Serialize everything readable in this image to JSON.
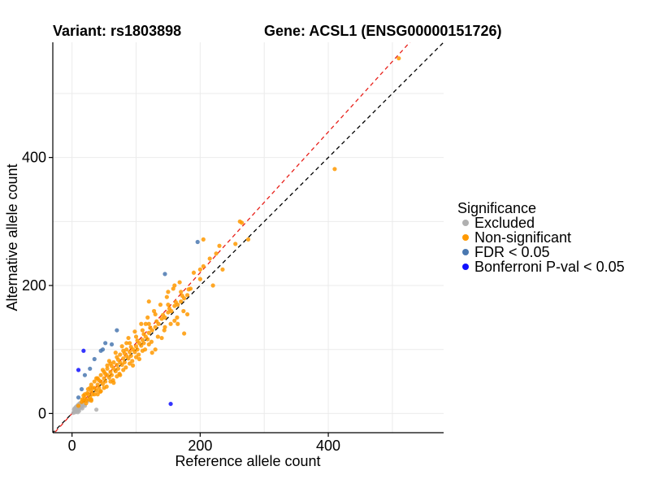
{
  "chart_data": {
    "type": "scatter",
    "title_left": "Variant: rs1803898",
    "title_right": "Gene: ACSL1 (ENSG00000151726)",
    "xlabel": "Reference allele count",
    "ylabel": "Alternative allele count",
    "xlim": [
      -30,
      580
    ],
    "ylim": [
      -30,
      580
    ],
    "x_ticks": [
      0,
      200,
      400
    ],
    "y_ticks": [
      0,
      200,
      400
    ],
    "grid": true,
    "legend": {
      "title": "Significance",
      "placement": "right",
      "entries": [
        {
          "label": "Excluded",
          "color": "#b0b0b0"
        },
        {
          "label": "Non-significant",
          "color": "#ff9900"
        },
        {
          "label": "FDR < 0.05",
          "color": "#4a78b0"
        },
        {
          "label": "Bonferroni P-val < 0.05",
          "color": "#1010ff"
        }
      ]
    },
    "reference_lines": [
      {
        "name": "y = x",
        "slope": 1.0,
        "color": "#000000",
        "style": "dashed"
      },
      {
        "name": "fit",
        "slope": 1.1,
        "color": "#e8201a",
        "style": "dashed"
      }
    ],
    "series": [
      {
        "name": "Excluded",
        "color": "#b0b0b0",
        "points": [
          [
            2,
            1
          ],
          [
            4,
            3
          ],
          [
            5,
            2
          ],
          [
            6,
            5
          ],
          [
            8,
            4
          ],
          [
            9,
            7
          ],
          [
            10,
            6
          ],
          [
            12,
            9
          ],
          [
            3,
            6
          ],
          [
            7,
            9
          ],
          [
            11,
            4
          ],
          [
            14,
            10
          ],
          [
            15,
            12
          ],
          [
            6,
            10
          ],
          [
            13,
            15
          ],
          [
            18,
            14
          ],
          [
            9,
            2
          ],
          [
            16,
            8
          ],
          [
            20,
            12
          ],
          [
            4,
            8
          ],
          [
            25,
            20
          ],
          [
            10,
            14
          ],
          [
            38,
            6
          ],
          [
            8,
            12
          ],
          [
            12,
            16
          ]
        ]
      },
      {
        "name": "Non-significant",
        "color": "#ff9900",
        "points": [
          [
            10,
            12
          ],
          [
            15,
            18
          ],
          [
            18,
            20
          ],
          [
            20,
            24
          ],
          [
            22,
            20
          ],
          [
            25,
            30
          ],
          [
            28,
            26
          ],
          [
            30,
            35
          ],
          [
            32,
            30
          ],
          [
            35,
            40
          ],
          [
            38,
            36
          ],
          [
            40,
            45
          ],
          [
            42,
            40
          ],
          [
            45,
            50
          ],
          [
            48,
            46
          ],
          [
            50,
            55
          ],
          [
            52,
            50
          ],
          [
            55,
            60
          ],
          [
            58,
            56
          ],
          [
            60,
            65
          ],
          [
            62,
            60
          ],
          [
            65,
            70
          ],
          [
            68,
            66
          ],
          [
            70,
            76
          ],
          [
            72,
            70
          ],
          [
            75,
            80
          ],
          [
            78,
            76
          ],
          [
            80,
            86
          ],
          [
            82,
            80
          ],
          [
            85,
            90
          ],
          [
            88,
            86
          ],
          [
            90,
            96
          ],
          [
            92,
            90
          ],
          [
            95,
            100
          ],
          [
            98,
            96
          ],
          [
            100,
            105
          ],
          [
            102,
            100
          ],
          [
            105,
            110
          ],
          [
            108,
            106
          ],
          [
            110,
            115
          ],
          [
            112,
            110
          ],
          [
            115,
            120
          ],
          [
            118,
            116
          ],
          [
            120,
            126
          ],
          [
            125,
            130
          ],
          [
            130,
            135
          ],
          [
            135,
            140
          ],
          [
            140,
            148
          ],
          [
            145,
            150
          ],
          [
            150,
            158
          ],
          [
            155,
            160
          ],
          [
            160,
            168
          ],
          [
            165,
            170
          ],
          [
            170,
            175
          ],
          [
            175,
            180
          ],
          [
            180,
            185
          ],
          [
            20,
            30
          ],
          [
            30,
            45
          ],
          [
            40,
            55
          ],
          [
            50,
            65
          ],
          [
            60,
            78
          ],
          [
            70,
            88
          ],
          [
            80,
            98
          ],
          [
            90,
            110
          ],
          [
            100,
            120
          ],
          [
            110,
            130
          ],
          [
            120,
            140
          ],
          [
            30,
            22
          ],
          [
            40,
            30
          ],
          [
            50,
            40
          ],
          [
            60,
            50
          ],
          [
            70,
            58
          ],
          [
            80,
            68
          ],
          [
            90,
            78
          ],
          [
            100,
            88
          ],
          [
            110,
            98
          ],
          [
            120,
            108
          ],
          [
            35,
            50
          ],
          [
            45,
            60
          ],
          [
            55,
            75
          ],
          [
            65,
            80
          ],
          [
            75,
            92
          ],
          [
            85,
            100
          ],
          [
            25,
            38
          ],
          [
            38,
            55
          ],
          [
            48,
            68
          ],
          [
            58,
            82
          ],
          [
            68,
            95
          ],
          [
            78,
            105
          ],
          [
            88,
            118
          ],
          [
            98,
            128
          ],
          [
            108,
            140
          ],
          [
            118,
            150
          ],
          [
            128,
            160
          ],
          [
            138,
            170
          ],
          [
            148,
            182
          ],
          [
            158,
            195
          ],
          [
            168,
            205
          ],
          [
            30,
            20
          ],
          [
            44,
            34
          ],
          [
            54,
            42
          ],
          [
            64,
            52
          ],
          [
            74,
            62
          ],
          [
            84,
            72
          ],
          [
            94,
            82
          ],
          [
            104,
            92
          ],
          [
            114,
            100
          ],
          [
            124,
            112
          ],
          [
            134,
            120
          ],
          [
            144,
            130
          ],
          [
            154,
            140
          ],
          [
            164,
            150
          ],
          [
            174,
            160
          ],
          [
            130,
            100
          ],
          [
            140,
            118
          ],
          [
            175,
            125
          ],
          [
            160,
            145
          ],
          [
            150,
            170
          ],
          [
            190,
            220
          ],
          [
            200,
            225
          ],
          [
            205,
            230
          ],
          [
            215,
            242
          ],
          [
            225,
            250
          ],
          [
            230,
            262
          ],
          [
            150,
            190
          ],
          [
            160,
            200
          ],
          [
            130,
            155
          ],
          [
            120,
            175
          ],
          [
            180,
            155
          ],
          [
            145,
            135
          ],
          [
            115,
            140
          ],
          [
            95,
            75
          ],
          [
            85,
            110
          ],
          [
            75,
            60
          ],
          [
            65,
            48
          ],
          [
            55,
            70
          ],
          [
            45,
            35
          ],
          [
            35,
            30
          ],
          [
            28,
            40
          ],
          [
            24,
            32
          ],
          [
            18,
            28
          ],
          [
            16,
            22
          ],
          [
            22,
            16
          ],
          [
            26,
            22
          ],
          [
            32,
            40
          ],
          [
            42,
            52
          ],
          [
            52,
            62
          ],
          [
            62,
            74
          ],
          [
            72,
            84
          ],
          [
            82,
            94
          ],
          [
            92,
            104
          ],
          [
            102,
            114
          ],
          [
            112,
            124
          ],
          [
            122,
            134
          ],
          [
            132,
            144
          ],
          [
            142,
            154
          ],
          [
            152,
            164
          ],
          [
            162,
            174
          ],
          [
            172,
            184
          ],
          [
            182,
            194
          ],
          [
            262,
            300
          ],
          [
            265,
            298
          ],
          [
            275,
            272
          ],
          [
            255,
            265
          ],
          [
            205,
            272
          ],
          [
            410,
            382
          ],
          [
            510,
            555
          ],
          [
            235,
            225
          ],
          [
            220,
            200
          ],
          [
            200,
            210
          ],
          [
            185,
            195
          ],
          [
            170,
            190
          ],
          [
            165,
            140
          ],
          [
            125,
            95
          ],
          [
            105,
            85
          ]
        ]
      },
      {
        "name": "FDR < 0.05",
        "color": "#4a78b0",
        "points": [
          [
            196,
            268
          ],
          [
            145,
            218
          ],
          [
            48,
            100
          ],
          [
            45,
            98
          ],
          [
            62,
            108
          ],
          [
            20,
            60
          ],
          [
            15,
            38
          ],
          [
            10,
            25
          ],
          [
            28,
            70
          ],
          [
            70,
            130
          ],
          [
            35,
            85
          ],
          [
            52,
            110
          ]
        ]
      },
      {
        "name": "Bonferroni P-val < 0.05",
        "color": "#1010ff",
        "points": [
          [
            18,
            98
          ],
          [
            10,
            68
          ],
          [
            154,
            15
          ]
        ]
      }
    ]
  }
}
